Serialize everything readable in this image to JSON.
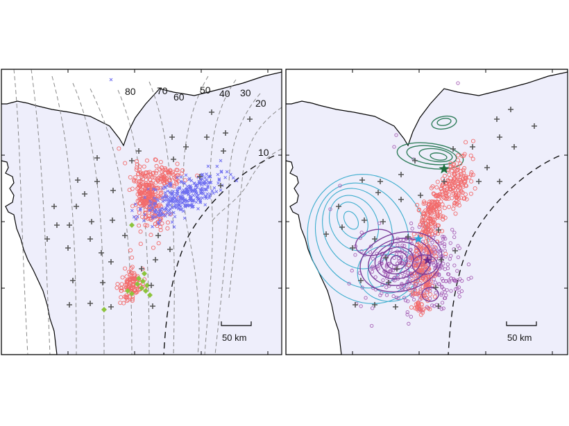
{
  "left_panel": {
    "contour_labels": [
      "80",
      "70",
      "60",
      "50",
      "40",
      "30",
      "20",
      "10"
    ],
    "scale_bar_label": "50 km"
  },
  "right_panel": {
    "scale_bar_label": "50 km"
  },
  "colors": {
    "sea": "#eeeefb",
    "land": "#ffffff",
    "coast": "#000000",
    "station_plus": "#555555",
    "depth_contour": "#888888",
    "trench_dash": "#111111",
    "red_circles": "#f26b6b",
    "blue_crosses": "#6f6ff0",
    "green_diamonds": "#8cc43c",
    "purple_circles": "#a65fb5",
    "dark_green_contours": "#2e7d5a",
    "cyan_contours": "#3aaccd",
    "purple_contours": "#7a3c9a",
    "star_green": "#1e6e3e",
    "star_cyan": "#29a7dd",
    "star_purple": "#6a2a8a"
  }
}
